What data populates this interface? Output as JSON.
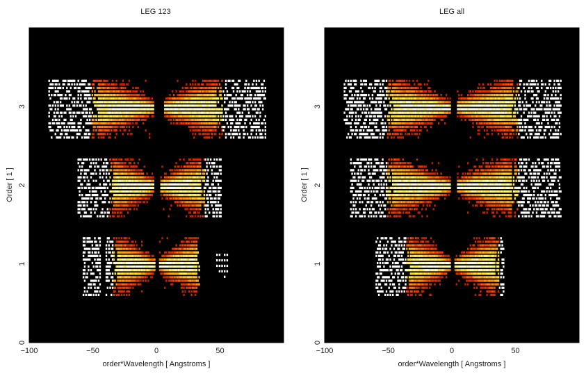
{
  "chart_data": [
    {
      "type": "heatmap",
      "title": "LEG 123",
      "xlabel": "order*Wavelength [ Angstroms ]",
      "ylabel": "Order [ 1 ]",
      "xlim": [
        -100,
        100
      ],
      "ylim": [
        0,
        4
      ],
      "xticks": [
        -100,
        -50,
        0,
        50
      ],
      "yticks": [
        0,
        1,
        2,
        3
      ],
      "colormap": "heat (black-red-orange-yellow-white)",
      "background": "#000000",
      "bands": [
        {
          "order": 1,
          "x_range": [
            -58,
            33
          ],
          "gaps": [
            [
              -44,
              -41
            ],
            [
              -1,
              1
            ]
          ],
          "outliers": [
            [
              47,
              55
            ]
          ]
        },
        {
          "order": 2,
          "x_range": [
            -62,
            50
          ],
          "gaps": [
            [
              -2,
              2
            ]
          ],
          "outliers": []
        },
        {
          "order": 3,
          "x_range": [
            -85,
            85
          ],
          "gaps": [
            [
              -2,
              5
            ]
          ],
          "outliers": []
        }
      ]
    },
    {
      "type": "heatmap",
      "title": "LEG all",
      "xlabel": "order*Wavelength [ Angstroms ]",
      "ylabel": "Order [ 1 ]",
      "xlim": [
        -100,
        100
      ],
      "ylim": [
        0,
        4
      ],
      "xticks": [
        -100,
        -50,
        0,
        50
      ],
      "yticks": [
        0,
        1,
        2,
        3
      ],
      "colormap": "heat (black-red-orange-yellow-white)",
      "background": "#000000",
      "bands": [
        {
          "order": 1,
          "x_range": [
            -60,
            40
          ],
          "gaps": [
            [
              -1,
              1
            ]
          ],
          "outliers": []
        },
        {
          "order": 2,
          "x_range": [
            -80,
            85
          ],
          "gaps": [
            [
              -1,
              3
            ]
          ],
          "outliers": []
        },
        {
          "order": 3,
          "x_range": [
            -85,
            85
          ],
          "gaps": [
            [
              -1,
              3
            ]
          ],
          "outliers": []
        }
      ]
    }
  ]
}
